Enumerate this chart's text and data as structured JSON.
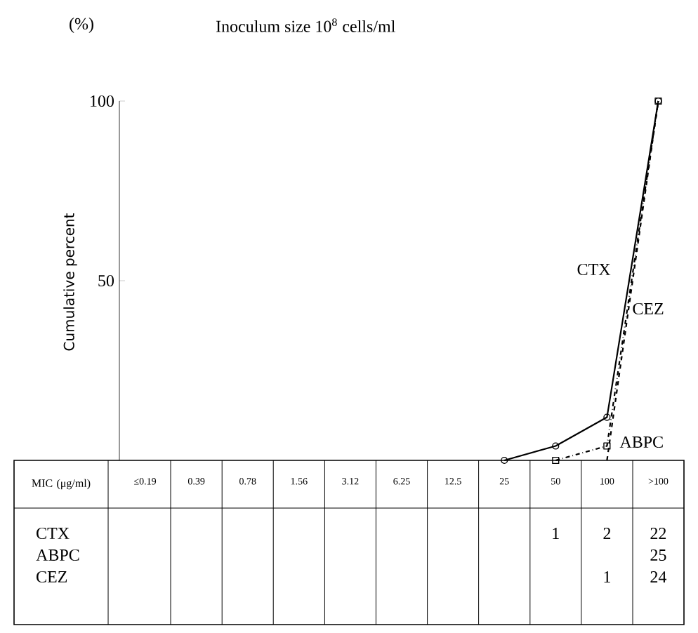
{
  "chart_data": [
    {
      "type": "line",
      "title": "Inoculum size 10$^{8}$ cells/ml",
      "ylabel": "Cumulative percent",
      "xlabel": "MIC (μg/ml)",
      "annotations": [
        "(%)"
      ],
      "categories": [
        "≤0.19",
        "0.39",
        "0.78",
        "1.56",
        "3.12",
        "6.25",
        "12.5",
        "25",
        "50",
        "100",
        ">100"
      ],
      "ylim": [
        0,
        100
      ],
      "yticks": [
        50,
        100
      ],
      "series": [
        {
          "name": "CTX",
          "color": "#000000",
          "line_style": "solid",
          "marker": "circle",
          "values": [
            null,
            null,
            null,
            null,
            null,
            null,
            null,
            0,
            4,
            12,
            100
          ]
        },
        {
          "name": "ABPC",
          "color": "#000000",
          "line_style": "dashed",
          "values": [
            null,
            null,
            null,
            null,
            null,
            null,
            null,
            null,
            null,
            0,
            100
          ]
        },
        {
          "name": "CEZ",
          "color": "#000000",
          "line_style": "dashdot",
          "marker": "square",
          "values": [
            null,
            null,
            null,
            null,
            null,
            null,
            null,
            null,
            0,
            4,
            100
          ]
        }
      ]
    },
    {
      "type": "heatmap",
      "data_labels": true,
      "categories": [
        null,
        null,
        null,
        null,
        null,
        null,
        null,
        null,
        null,
        null,
        null
      ],
      "y_categories": [
        "CTX",
        "ABPC",
        "CEZ"
      ],
      "cells": [
        [
          null,
          null,
          null,
          null,
          null,
          null,
          null,
          null,
          1,
          2,
          22
        ],
        [
          null,
          null,
          null,
          null,
          null,
          null,
          null,
          null,
          null,
          null,
          25
        ],
        [
          null,
          null,
          null,
          null,
          null,
          null,
          null,
          null,
          null,
          1,
          24
        ]
      ]
    }
  ]
}
